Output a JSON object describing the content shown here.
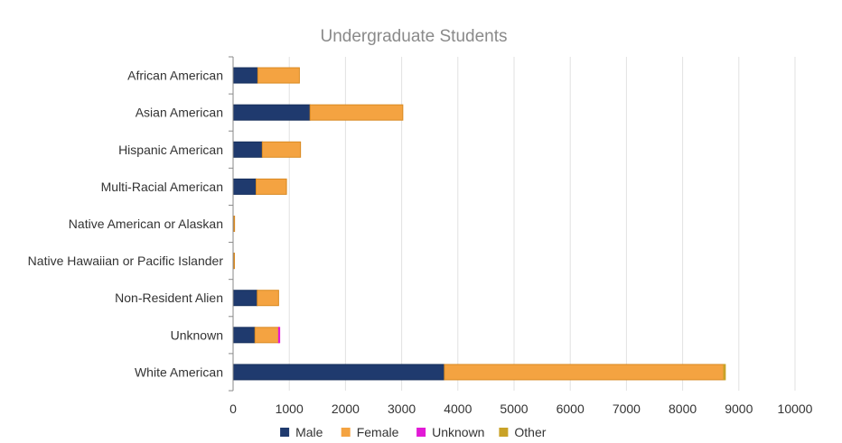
{
  "chart_data": {
    "type": "bar",
    "orientation": "horizontal",
    "stacked": true,
    "title": "Undergraduate Students",
    "xlabel": "",
    "ylabel": "",
    "xlim": [
      0,
      10000
    ],
    "xticks": [
      "0",
      "1000",
      "2000",
      "3000",
      "4000",
      "5000",
      "6000",
      "7000",
      "8000",
      "9000",
      "10000"
    ],
    "grid": true,
    "legend_position": "bottom",
    "categories": [
      "African American",
      "Asian American",
      "Hispanic American",
      "Multi-Racial American",
      "Native American or Alaskan",
      "Native Hawaiian or Pacific Islander",
      "Non-Resident Alien",
      "Unknown",
      "White American"
    ],
    "series": [
      {
        "name": "Male",
        "color": "#1f3a6e",
        "values": [
          440,
          1370,
          520,
          410,
          10,
          8,
          430,
          390,
          3760
        ]
      },
      {
        "name": "Female",
        "color": "#f4a341",
        "values": [
          740,
          1650,
          680,
          540,
          15,
          10,
          380,
          420,
          4970
        ]
      },
      {
        "name": "Unknown",
        "color": "#e21ad6",
        "values": [
          0,
          0,
          0,
          0,
          0,
          0,
          0,
          20,
          0
        ]
      },
      {
        "name": "Other",
        "color": "#c9a227",
        "values": [
          0,
          0,
          0,
          0,
          0,
          0,
          0,
          0,
          30
        ]
      }
    ]
  }
}
